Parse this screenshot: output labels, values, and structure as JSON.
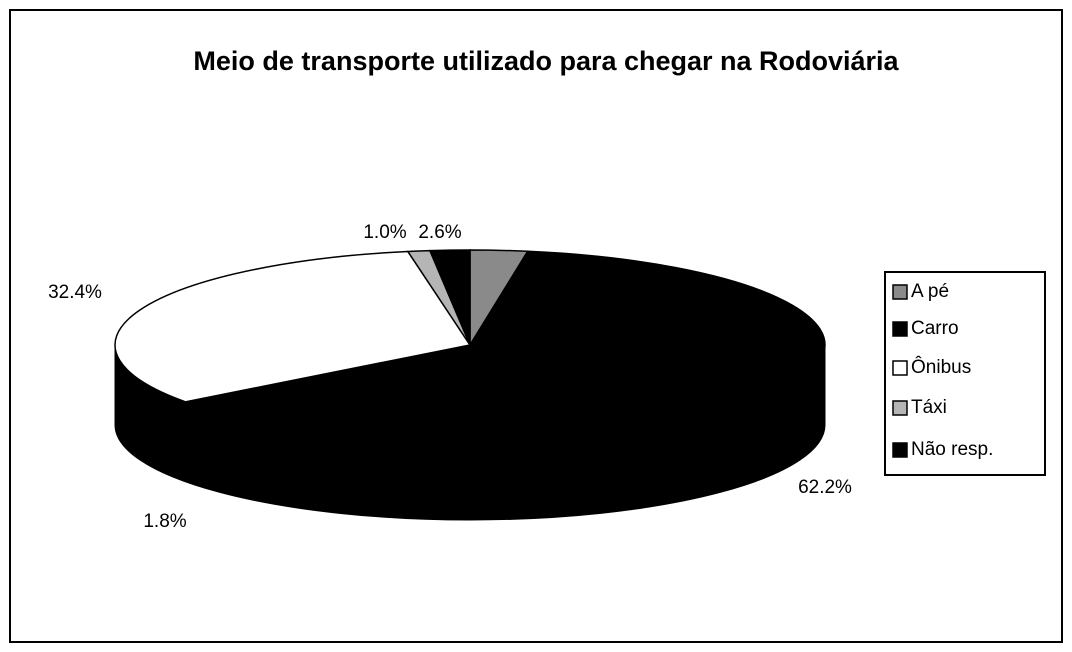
{
  "chart_data": {
    "type": "pie3d",
    "title": "Meio de transporte utilizado para chegar na Rodoviária",
    "categories": [
      "A pé",
      "Carro",
      "Ônibus",
      "Táxi",
      "Não resp."
    ],
    "values": [
      2.6,
      62.2,
      32.4,
      1.0,
      1.8
    ],
    "value_labels": [
      "2.6%",
      "62.2%",
      "32.4%",
      "1.0%",
      "1.8%"
    ],
    "colors": [
      "#8a8a8a",
      "#000000",
      "#ffffff",
      "#b5b5b5",
      "#000000"
    ],
    "legend": "right"
  }
}
